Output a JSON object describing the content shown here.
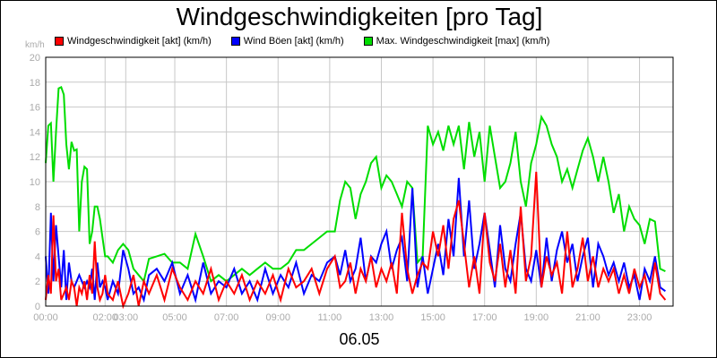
{
  "chart_data": {
    "type": "line",
    "title": "Windgeschwindigkeiten [pro Tag]",
    "xlabel": "06.05",
    "ylabel": "km/h",
    "ylim": [
      0,
      20
    ],
    "xlim": [
      0,
      24.3
    ],
    "yticks": [
      "0",
      "2",
      "4",
      "6",
      "8",
      "10",
      "12",
      "14",
      "16",
      "18",
      "20"
    ],
    "xticks": [
      {
        "h": 0,
        "label": "00:00"
      },
      {
        "h": 2.3,
        "label": "02:00"
      },
      {
        "h": 3.1,
        "label": "03:00"
      },
      {
        "h": 5,
        "label": "05:00"
      },
      {
        "h": 7,
        "label": "07:00"
      },
      {
        "h": 9,
        "label": "09:00"
      },
      {
        "h": 11,
        "label": "11:00"
      },
      {
        "h": 13,
        "label": "13:00"
      },
      {
        "h": 15,
        "label": "15:00"
      },
      {
        "h": 17,
        "label": "17:00"
      },
      {
        "h": 19,
        "label": "19:00"
      },
      {
        "h": 21,
        "label": "21:00"
      },
      {
        "h": 23,
        "label": "23:00"
      }
    ],
    "grid": true,
    "legend_position": "top",
    "series": [
      {
        "name": "Max. Windgeschwindigkeit [max] (km/h)",
        "color": "#00dd00",
        "x": [
          0,
          0.1,
          0.2,
          0.3,
          0.4,
          0.5,
          0.6,
          0.7,
          0.8,
          0.9,
          1.0,
          1.1,
          1.2,
          1.3,
          1.4,
          1.5,
          1.6,
          1.7,
          1.8,
          1.9,
          2.0,
          2.1,
          2.2,
          2.3,
          2.4,
          2.6,
          2.8,
          3.0,
          3.2,
          3.4,
          3.6,
          3.8,
          4.0,
          4.3,
          4.6,
          4.9,
          5.2,
          5.5,
          5.8,
          6.1,
          6.4,
          6.7,
          7.0,
          7.3,
          7.6,
          7.9,
          8.2,
          8.5,
          8.8,
          9.1,
          9.4,
          9.7,
          10.0,
          10.3,
          10.6,
          10.9,
          11.2,
          11.4,
          11.6,
          11.8,
          12.0,
          12.2,
          12.4,
          12.6,
          12.8,
          13.0,
          13.2,
          13.4,
          13.6,
          13.8,
          14.0,
          14.2,
          14.4,
          14.6,
          14.8,
          15.0,
          15.2,
          15.4,
          15.6,
          15.8,
          16.0,
          16.2,
          16.4,
          16.6,
          16.8,
          17.0,
          17.2,
          17.4,
          17.6,
          17.8,
          18.0,
          18.2,
          18.4,
          18.6,
          18.8,
          19.0,
          19.2,
          19.4,
          19.6,
          19.8,
          20.0,
          20.2,
          20.4,
          20.6,
          20.8,
          21.0,
          21.2,
          21.4,
          21.6,
          21.8,
          22.0,
          22.2,
          22.4,
          22.6,
          22.8,
          23.0,
          23.2,
          23.4,
          23.6,
          23.8,
          24.0
        ],
        "values": [
          11.5,
          14.5,
          14.7,
          10.0,
          14.0,
          17.5,
          17.6,
          17.0,
          13.0,
          11.0,
          13.2,
          12.5,
          12.6,
          6.0,
          10.0,
          11.2,
          11.0,
          5.0,
          6.0,
          8.0,
          8.0,
          7.0,
          5.5,
          4.0,
          4.0,
          3.5,
          4.5,
          5.0,
          4.5,
          3.0,
          2.5,
          2.0,
          3.8,
          4.0,
          4.2,
          3.5,
          3.5,
          3.0,
          5.8,
          4.0,
          2.0,
          2.5,
          2.0,
          2.5,
          3.0,
          2.5,
          3.0,
          3.5,
          3.0,
          3.0,
          3.5,
          4.5,
          4.5,
          5.0,
          5.5,
          6.0,
          6.0,
          8.5,
          10.0,
          9.5,
          7.0,
          9.0,
          10.0,
          11.5,
          12.0,
          9.5,
          10.5,
          10.0,
          9.0,
          8.0,
          10.0,
          9.5,
          3.5,
          4.0,
          14.5,
          13.0,
          14.0,
          12.5,
          14.5,
          13.0,
          14.5,
          11.0,
          14.8,
          12.0,
          14.0,
          10.0,
          14.5,
          12.0,
          9.5,
          10.0,
          11.5,
          14.0,
          10.0,
          8.0,
          11.5,
          13.0,
          15.2,
          14.5,
          13.0,
          12.0,
          10.0,
          11.0,
          9.5,
          11.0,
          12.5,
          13.5,
          12.0,
          10.0,
          12.0,
          10.0,
          7.5,
          9.0,
          6.0,
          8.0,
          7.0,
          6.5,
          5.0,
          7.0,
          6.8,
          3.0,
          2.8
        ]
      },
      {
        "name": "Wind Böen [akt] (km/h)",
        "color": "#0000ff",
        "x": [
          0,
          0.1,
          0.2,
          0.3,
          0.4,
          0.5,
          0.6,
          0.7,
          0.8,
          0.9,
          1.0,
          1.1,
          1.2,
          1.3,
          1.4,
          1.5,
          1.6,
          1.7,
          1.8,
          1.9,
          2.0,
          2.1,
          2.2,
          2.3,
          2.4,
          2.6,
          2.8,
          3.0,
          3.2,
          3.4,
          3.6,
          3.8,
          4.0,
          4.3,
          4.6,
          4.9,
          5.2,
          5.5,
          5.8,
          6.1,
          6.4,
          6.7,
          7.0,
          7.3,
          7.6,
          7.9,
          8.2,
          8.5,
          8.8,
          9.1,
          9.4,
          9.7,
          10.0,
          10.3,
          10.6,
          10.9,
          11.2,
          11.4,
          11.6,
          11.8,
          12.0,
          12.2,
          12.4,
          12.6,
          12.8,
          13.0,
          13.2,
          13.4,
          13.6,
          13.8,
          14.0,
          14.2,
          14.4,
          14.6,
          14.8,
          15.0,
          15.2,
          15.4,
          15.6,
          15.8,
          16.0,
          16.2,
          16.4,
          16.6,
          16.8,
          17.0,
          17.2,
          17.4,
          17.6,
          17.8,
          18.0,
          18.2,
          18.4,
          18.6,
          18.8,
          19.0,
          19.2,
          19.4,
          19.6,
          19.8,
          20.0,
          20.2,
          20.4,
          20.6,
          20.8,
          21.0,
          21.2,
          21.4,
          21.6,
          21.8,
          22.0,
          22.2,
          22.4,
          22.6,
          22.8,
          23.0,
          23.2,
          23.4,
          23.6,
          23.8,
          24.0
        ],
        "values": [
          4.0,
          1.0,
          7.5,
          2.0,
          6.5,
          4.0,
          1.5,
          4.5,
          0.5,
          3.5,
          2.0,
          1.5,
          2.0,
          2.5,
          2.0,
          1.5,
          2.0,
          1.5,
          3.0,
          0.5,
          3.5,
          1.5,
          2.0,
          1.5,
          0.5,
          2.0,
          1.0,
          4.5,
          3.0,
          1.0,
          1.5,
          0.5,
          2.5,
          3.0,
          2.0,
          3.5,
          1.0,
          2.5,
          0.5,
          3.5,
          1.0,
          2.0,
          1.5,
          3.0,
          1.0,
          2.0,
          0.5,
          3.0,
          1.0,
          2.5,
          1.5,
          3.5,
          1.0,
          2.5,
          2.0,
          3.5,
          4.0,
          2.5,
          4.5,
          2.0,
          3.0,
          5.5,
          2.0,
          4.0,
          3.5,
          5.0,
          6.0,
          3.0,
          4.5,
          5.5,
          2.0,
          9.5,
          1.5,
          4.0,
          1.0,
          3.0,
          5.0,
          2.5,
          7.0,
          4.0,
          10.3,
          4.0,
          8.5,
          3.0,
          5.0,
          7.5,
          4.5,
          1.5,
          6.5,
          3.0,
          2.0,
          5.0,
          7.5,
          3.0,
          2.0,
          4.5,
          1.5,
          5.5,
          2.0,
          4.5,
          6.0,
          3.5,
          5.0,
          2.0,
          4.0,
          5.5,
          1.5,
          5.0,
          4.0,
          2.5,
          3.5,
          2.0,
          3.5,
          1.5,
          2.5,
          0.5,
          3.0,
          2.0,
          4.0,
          1.5,
          1.2
        ]
      },
      {
        "name": "Windgeschwindigkeit [akt] (km/h)",
        "color": "#ff0000",
        "x": [
          0,
          0.1,
          0.2,
          0.3,
          0.4,
          0.5,
          0.6,
          0.7,
          0.8,
          0.9,
          1.0,
          1.1,
          1.2,
          1.3,
          1.4,
          1.5,
          1.6,
          1.7,
          1.8,
          1.9,
          2.0,
          2.1,
          2.2,
          2.3,
          2.4,
          2.6,
          2.8,
          3.0,
          3.2,
          3.4,
          3.6,
          3.8,
          4.0,
          4.3,
          4.6,
          4.9,
          5.2,
          5.5,
          5.8,
          6.1,
          6.4,
          6.7,
          7.0,
          7.3,
          7.6,
          7.9,
          8.2,
          8.5,
          8.8,
          9.1,
          9.4,
          9.7,
          10.0,
          10.3,
          10.6,
          10.9,
          11.2,
          11.4,
          11.6,
          11.8,
          12.0,
          12.2,
          12.4,
          12.6,
          12.8,
          13.0,
          13.2,
          13.4,
          13.6,
          13.8,
          14.0,
          14.2,
          14.4,
          14.6,
          14.8,
          15.0,
          15.2,
          15.4,
          15.6,
          15.8,
          16.0,
          16.2,
          16.4,
          16.6,
          16.8,
          17.0,
          17.2,
          17.4,
          17.6,
          17.8,
          18.0,
          18.2,
          18.4,
          18.6,
          18.8,
          19.0,
          19.2,
          19.4,
          19.6,
          19.8,
          20.0,
          20.2,
          20.4,
          20.6,
          20.8,
          21.0,
          21.2,
          21.4,
          21.6,
          21.8,
          22.0,
          22.2,
          22.4,
          22.6,
          22.8,
          23.0,
          23.2,
          23.4,
          23.6,
          23.8,
          24.0
        ],
        "values": [
          0.5,
          2.5,
          1.0,
          7.3,
          2.0,
          3.0,
          0.5,
          1.0,
          1.5,
          0.5,
          2.0,
          1.5,
          0.0,
          1.5,
          1.0,
          2.0,
          0.5,
          2.5,
          1.0,
          5.2,
          1.5,
          0.5,
          1.0,
          2.5,
          1.0,
          0.5,
          2.0,
          0.0,
          1.0,
          2.5,
          0.0,
          2.0,
          1.0,
          2.5,
          0.5,
          3.0,
          1.5,
          0.5,
          2.0,
          1.0,
          3.0,
          0.5,
          2.0,
          1.0,
          2.5,
          0.5,
          2.0,
          1.0,
          2.5,
          0.5,
          3.0,
          1.5,
          2.0,
          3.0,
          1.0,
          3.0,
          4.0,
          1.5,
          2.0,
          3.5,
          1.0,
          3.0,
          2.0,
          4.0,
          1.5,
          3.0,
          2.0,
          3.5,
          1.0,
          7.5,
          3.0,
          1.0,
          2.5,
          3.5,
          3.0,
          6.0,
          4.0,
          6.5,
          3.0,
          7.0,
          8.5,
          5.0,
          1.5,
          4.0,
          1.0,
          7.5,
          3.5,
          2.0,
          5.0,
          1.5,
          4.5,
          1.0,
          8.0,
          2.0,
          4.0,
          10.8,
          1.5,
          4.0,
          2.5,
          3.5,
          1.0,
          6.0,
          1.5,
          3.0,
          5.5,
          2.0,
          4.0,
          1.5,
          3.0,
          2.0,
          3.0,
          1.0,
          2.5,
          1.0,
          3.0,
          1.5,
          2.5,
          0.5,
          3.5,
          1.0,
          0.5
        ]
      }
    ]
  },
  "legend_items": [
    {
      "label": "Windgeschwindigkeit [akt] (km/h)",
      "color": "#ff0000"
    },
    {
      "label": "Wind Böen [akt] (km/h)",
      "color": "#0000ff"
    },
    {
      "label": "Max. Windgeschwindigkeit [max] (km/h)",
      "color": "#00dd00"
    }
  ]
}
